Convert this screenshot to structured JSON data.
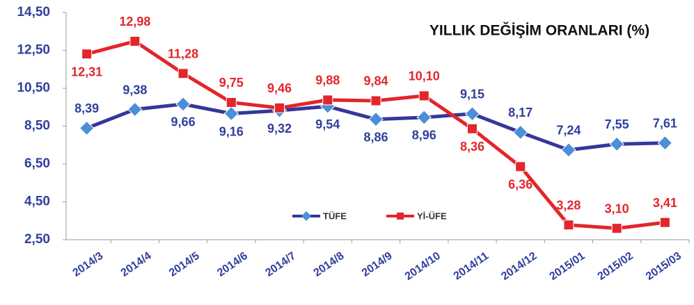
{
  "chart_data": {
    "type": "line",
    "title": "YILLIK DEĞİŞİM ORANLARI (%)",
    "categories": [
      "2014/3",
      "2014/4",
      "2014/5",
      "2014/6",
      "2014/7",
      "2014/8",
      "2014/9",
      "2014/10",
      "2014/11",
      "2014/12",
      "2015/01",
      "2015/02",
      "2015/03"
    ],
    "series": [
      {
        "name": "TÜFE",
        "color": "#35379a",
        "marker_color": "#4a8fd8",
        "values": [
          8.39,
          9.38,
          9.66,
          9.16,
          9.32,
          9.54,
          8.86,
          8.96,
          9.15,
          8.17,
          7.24,
          7.55,
          7.61
        ],
        "value_labels": [
          "8,39",
          "9,38",
          "9,66",
          "9,16",
          "9,32",
          "9,54",
          "8,86",
          "8,96",
          "9,15",
          "8,17",
          "7,24",
          "7,55",
          "7,61"
        ]
      },
      {
        "name": "Yİ-ÜFE",
        "color": "#e2262b",
        "marker_color": "#e2262b",
        "values": [
          12.31,
          12.98,
          11.28,
          9.75,
          9.46,
          9.88,
          9.84,
          10.1,
          8.36,
          6.36,
          3.28,
          3.1,
          3.41
        ],
        "value_labels": [
          "12,31",
          "12,98",
          "11,28",
          "9,75",
          "9,46",
          "9,88",
          "9,84",
          "10,10",
          "8,36",
          "6,36",
          "3,28",
          "3,10",
          "3,41"
        ]
      }
    ],
    "ylim": [
      2.5,
      14.5
    ],
    "yticks": [
      {
        "value": 2.5,
        "label": "2,50"
      },
      {
        "value": 4.5,
        "label": "4,50"
      },
      {
        "value": 6.5,
        "label": "6,50"
      },
      {
        "value": 8.5,
        "label": "8,50"
      },
      {
        "value": 10.5,
        "label": "10,50"
      },
      {
        "value": 12.5,
        "label": "12,50"
      },
      {
        "value": 14.5,
        "label": "14,50"
      }
    ],
    "grid": false,
    "legend": "bottom-center"
  }
}
